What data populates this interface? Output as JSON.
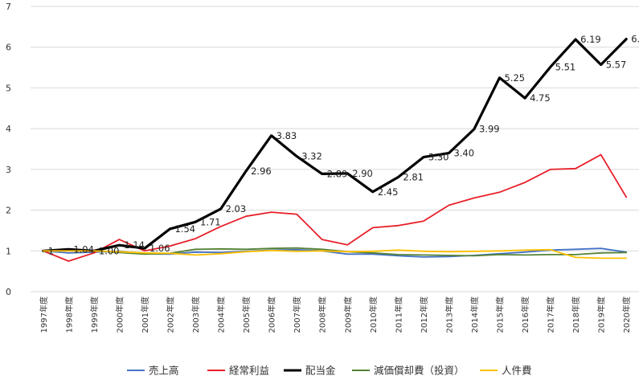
{
  "chart_data": {
    "type": "line",
    "categories": [
      "1997年度",
      "1998年度",
      "1999年度",
      "2000年度",
      "2001年度",
      "2002年度",
      "2003年度",
      "2004年度",
      "2005年度",
      "2006年度",
      "2007年度",
      "2008年度",
      "2009年度",
      "2010年度",
      "2011年度",
      "2012年度",
      "2013年度",
      "2014年度",
      "2015年度",
      "2016年度",
      "2017年度",
      "2018年度",
      "2019年度",
      "2020年度"
    ],
    "ylim": [
      0,
      7
    ],
    "yticks": [
      "0",
      "1",
      "2",
      "3",
      "4",
      "5",
      "6",
      "7"
    ],
    "grid": true,
    "legend_position": "bottom",
    "series": [
      {
        "name": "売上高",
        "color": "#4472C4",
        "width": 1.8,
        "values": [
          1.0,
          0.95,
          0.97,
          0.99,
          0.93,
          0.92,
          0.97,
          0.96,
          0.99,
          1.02,
          1.03,
          1.0,
          0.92,
          0.92,
          0.88,
          0.85,
          0.86,
          0.89,
          0.93,
          0.97,
          1.02,
          1.04,
          1.06,
          0.97
        ]
      },
      {
        "name": "経常利益",
        "color": "#E8202A",
        "width": 1.8,
        "values": [
          1.0,
          0.75,
          0.95,
          1.28,
          1.0,
          1.12,
          1.3,
          1.6,
          1.85,
          1.95,
          1.9,
          1.28,
          1.15,
          1.57,
          1.62,
          1.73,
          2.12,
          2.3,
          2.44,
          2.68,
          3.0,
          3.02,
          3.36,
          2.32
        ]
      },
      {
        "name": "配当金",
        "color": "#000000",
        "width": 3.2,
        "values": [
          1.0,
          1.04,
          1.0,
          1.14,
          1.06,
          1.54,
          1.71,
          2.03,
          2.96,
          3.83,
          3.32,
          2.89,
          2.9,
          2.45,
          2.81,
          3.3,
          3.4,
          3.99,
          5.25,
          4.75,
          5.51,
          6.19,
          5.57,
          6.2
        ],
        "labels": [
          "1",
          "1.04",
          "1.00",
          "1.14",
          "1.06",
          "1.54",
          "1.71",
          "2.03",
          "2.96",
          "3.83",
          "3.32",
          "2.89",
          "2.90",
          "2.45",
          "2.81",
          "3.30",
          "3.40",
          "3.99",
          "5.25",
          "4.75",
          "5.51",
          "6.19",
          "5.57",
          "6."
        ]
      },
      {
        "name": "減価償却費（投資）",
        "color": "#548235",
        "width": 1.8,
        "values": [
          1.0,
          1.03,
          1.0,
          0.96,
          0.92,
          0.94,
          1.04,
          1.05,
          1.04,
          1.06,
          1.07,
          1.04,
          0.98,
          0.95,
          0.91,
          0.9,
          0.89,
          0.88,
          0.91,
          0.9,
          0.91,
          0.91,
          0.95,
          0.96
        ]
      },
      {
        "name": "人件費",
        "color": "#FFC000",
        "width": 1.8,
        "values": [
          1.0,
          1.0,
          1.0,
          0.98,
          0.95,
          0.94,
          0.9,
          0.93,
          0.98,
          1.01,
          0.99,
          1.0,
          0.98,
          0.99,
          1.02,
          0.99,
          0.98,
          0.99,
          1.0,
          1.02,
          1.03,
          0.84,
          0.82,
          0.82
        ]
      }
    ]
  }
}
